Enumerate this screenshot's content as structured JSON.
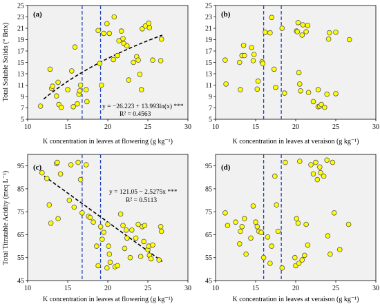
{
  "colors": {
    "panel_bg": "#f1f1f1",
    "point_fill": "#ffff00",
    "point_stroke": "#555555",
    "vline": "#1f3fbf",
    "trend": "#000000"
  },
  "axes": {
    "ylabel_top": "Total Soluble Solids (° Brix)",
    "ylabel_bottom": "Total Titratable Acidity (meq L⁻¹)",
    "xlabel_flowering": "K concentration in leaves at flowering (g kg⁻¹)",
    "xlabel_veraison": "K concentration in leaves at veraison (g kg⁻¹)"
  },
  "chart_data": [
    {
      "panel": "(a)",
      "type": "scatter",
      "xlim": [
        10,
        30
      ],
      "ylim": [
        5,
        25
      ],
      "xticks": [
        10,
        15,
        20,
        25,
        30
      ],
      "yticks": [
        5,
        7,
        9,
        11,
        13,
        15,
        17,
        19,
        21,
        23,
        25
      ],
      "vlines": [
        16.8,
        19.1
      ],
      "trend": {
        "kind": "log",
        "a": -26.223,
        "b": 13.993,
        "x_from": 12,
        "x_to": 26.8
      },
      "equation": "y = −26.223 + 13.993ln(x) ***",
      "r2": "R² = 0.4563",
      "points": [
        [
          11.6,
          7.3
        ],
        [
          12.8,
          13.8
        ],
        [
          13.0,
          10.4
        ],
        [
          13.1,
          10.8
        ],
        [
          13.6,
          9.1
        ],
        [
          13.8,
          11.5
        ],
        [
          13.9,
          7.6
        ],
        [
          14.2,
          7.1
        ],
        [
          15.0,
          10.2
        ],
        [
          15.5,
          13.5
        ],
        [
          15.7,
          7.2
        ],
        [
          15.9,
          17.7
        ],
        [
          16.2,
          7.7
        ],
        [
          16.4,
          9.4
        ],
        [
          16.5,
          10.0
        ],
        [
          16.6,
          11.0
        ],
        [
          17.3,
          10.2
        ],
        [
          17.4,
          8.1
        ],
        [
          18.8,
          20.6
        ],
        [
          19.0,
          14.8
        ],
        [
          19.2,
          11.0
        ],
        [
          19.5,
          20.1
        ],
        [
          19.9,
          21.8
        ],
        [
          20.2,
          20.1
        ],
        [
          20.7,
          15.5
        ],
        [
          20.8,
          23.0
        ],
        [
          21.2,
          16.2
        ],
        [
          21.4,
          18.8
        ],
        [
          21.7,
          20.5
        ],
        [
          21.9,
          19.2
        ],
        [
          22.0,
          18.3
        ],
        [
          22.4,
          17.9
        ],
        [
          22.6,
          11.9
        ],
        [
          23.2,
          15.0
        ],
        [
          23.6,
          16.0
        ],
        [
          23.8,
          15.4
        ],
        [
          24.0,
          12.9
        ],
        [
          24.2,
          10.2
        ],
        [
          24.3,
          20.9
        ],
        [
          24.7,
          21.4
        ],
        [
          25.1,
          21.9
        ],
        [
          25.2,
          21.1
        ],
        [
          25.6,
          15.4
        ],
        [
          26.6,
          15.3
        ],
        [
          26.7,
          19.1
        ]
      ]
    },
    {
      "panel": "(b)",
      "type": "scatter",
      "xlim": [
        10,
        30
      ],
      "ylim": [
        5,
        25
      ],
      "xticks": [
        10,
        15,
        20,
        25,
        30
      ],
      "yticks": [
        5,
        7,
        9,
        11,
        13,
        15,
        17,
        19,
        21,
        23,
        25
      ],
      "vlines": [
        16.0,
        18.2
      ],
      "points": [
        [
          11.2,
          15.4
        ],
        [
          11.3,
          11.2
        ],
        [
          13.0,
          15.0
        ],
        [
          13.1,
          10.2
        ],
        [
          13.3,
          16.2
        ],
        [
          13.5,
          18.0
        ],
        [
          13.6,
          16.2
        ],
        [
          14.5,
          17.6
        ],
        [
          14.7,
          15.3
        ],
        [
          14.8,
          16.4
        ],
        [
          15.2,
          10.3
        ],
        [
          15.3,
          11.7
        ],
        [
          15.8,
          15.1
        ],
        [
          15.9,
          14.8
        ],
        [
          16.2,
          20.3
        ],
        [
          16.8,
          20.2
        ],
        [
          17.0,
          22.9
        ],
        [
          17.3,
          13.8
        ],
        [
          17.5,
          10.6
        ],
        [
          18.3,
          21.0
        ],
        [
          18.6,
          9.6
        ],
        [
          20.1,
          20.5
        ],
        [
          20.2,
          20.4
        ],
        [
          20.3,
          22.0
        ],
        [
          20.4,
          13.2
        ],
        [
          20.5,
          11.2
        ],
        [
          20.6,
          10.0
        ],
        [
          20.8,
          19.8
        ],
        [
          20.9,
          21.6
        ],
        [
          21.3,
          20.4
        ],
        [
          21.5,
          21.5
        ],
        [
          21.6,
          9.7
        ],
        [
          22.2,
          8.1
        ],
        [
          22.8,
          10.2
        ],
        [
          22.8,
          7.2
        ],
        [
          23.0,
          7.3
        ],
        [
          23.2,
          7.6
        ],
        [
          23.6,
          7.1
        ],
        [
          23.9,
          9.4
        ],
        [
          24.1,
          19.1
        ],
        [
          24.2,
          20.2
        ],
        [
          25.0,
          20.3
        ],
        [
          25.0,
          9.5
        ],
        [
          26.7,
          19.0
        ]
      ]
    },
    {
      "panel": "(c)",
      "type": "scatter",
      "xlim": [
        10,
        30
      ],
      "ylim": [
        45,
        100
      ],
      "xticks": [
        10,
        15,
        20,
        25,
        30
      ],
      "yticks": [
        45,
        55,
        65,
        75,
        85,
        95
      ],
      "vlines": [
        16.8,
        19.1
      ],
      "trend": {
        "kind": "linear",
        "a": 121.05,
        "b": -2.5275,
        "x_from": 11.5,
        "x_to": 26.8
      },
      "equation": "y = 121.05 − 2.5275x ***",
      "r2": "R² = 0.5113",
      "points": [
        [
          11.8,
          92.0
        ],
        [
          12.4,
          89.5
        ],
        [
          12.7,
          78.0
        ],
        [
          12.9,
          70.0
        ],
        [
          13.6,
          96.0
        ],
        [
          13.7,
          96.5
        ],
        [
          13.8,
          72.0
        ],
        [
          14.1,
          91.5
        ],
        [
          15.2,
          80.0
        ],
        [
          15.4,
          95.5
        ],
        [
          15.8,
          77.0
        ],
        [
          16.3,
          96.5
        ],
        [
          16.6,
          89.0
        ],
        [
          16.8,
          74.5
        ],
        [
          17.3,
          95.5
        ],
        [
          17.6,
          73.0
        ],
        [
          17.8,
          72.5
        ],
        [
          18.2,
          70.5
        ],
        [
          18.6,
          60.0
        ],
        [
          18.8,
          51.5
        ],
        [
          19.1,
          68.5
        ],
        [
          19.3,
          63.0
        ],
        [
          19.5,
          66.0
        ],
        [
          19.9,
          50.5
        ],
        [
          20.1,
          60.0
        ],
        [
          20.2,
          56.5
        ],
        [
          20.3,
          53.0
        ],
        [
          20.9,
          51.0
        ],
        [
          21.2,
          51.5
        ],
        [
          21.6,
          74.0
        ],
        [
          21.9,
          69.0
        ],
        [
          22.1,
          59.0
        ],
        [
          22.3,
          67.0
        ],
        [
          22.4,
          63.5
        ],
        [
          22.8,
          55.0
        ],
        [
          23.0,
          67.0
        ],
        [
          23.5,
          63.5
        ],
        [
          23.8,
          69.5
        ],
        [
          24.1,
          55.5
        ],
        [
          24.3,
          68.5
        ],
        [
          24.5,
          62.0
        ],
        [
          24.6,
          69.0
        ],
        [
          25.0,
          58.5
        ],
        [
          25.1,
          60.0
        ],
        [
          25.2,
          56.0
        ],
        [
          25.4,
          54.5
        ],
        [
          25.6,
          60.5
        ],
        [
          26.4,
          54.0
        ],
        [
          26.6,
          68.5
        ],
        [
          26.7,
          66.5
        ],
        [
          20.0,
          69.5
        ]
      ]
    },
    {
      "panel": "(d)",
      "type": "scatter",
      "xlim": [
        10,
        30
      ],
      "ylim": [
        45,
        100
      ],
      "xticks": [
        10,
        15,
        20,
        25,
        30
      ],
      "yticks": [
        45,
        55,
        65,
        75,
        85,
        95
      ],
      "vlines": [
        16.0,
        18.2
      ],
      "points": [
        [
          11.2,
          74.5
        ],
        [
          11.5,
          69.0
        ],
        [
          12.5,
          70.5
        ],
        [
          13.0,
          61.0
        ],
        [
          13.1,
          66.5
        ],
        [
          13.3,
          68.5
        ],
        [
          13.6,
          72.0
        ],
        [
          13.8,
          56.5
        ],
        [
          14.4,
          63.5
        ],
        [
          14.7,
          77.5
        ],
        [
          15.0,
          70.5
        ],
        [
          15.2,
          68.5
        ],
        [
          15.4,
          66.5
        ],
        [
          15.7,
          66.0
        ],
        [
          16.0,
          55.0
        ],
        [
          16.5,
          64.0
        ],
        [
          16.8,
          52.5
        ],
        [
          17.0,
          60.0
        ],
        [
          17.4,
          90.5
        ],
        [
          17.6,
          78.0
        ],
        [
          17.8,
          66.5
        ],
        [
          18.3,
          50.5
        ],
        [
          18.7,
          96.5
        ],
        [
          19.9,
          55.0
        ],
        [
          20.0,
          51.5
        ],
        [
          20.1,
          72.0
        ],
        [
          20.3,
          70.0
        ],
        [
          20.4,
          52.5
        ],
        [
          20.5,
          97.0
        ],
        [
          20.8,
          54.0
        ],
        [
          21.1,
          56.0
        ],
        [
          21.3,
          69.5
        ],
        [
          21.5,
          60.5
        ],
        [
          21.9,
          95.5
        ],
        [
          22.2,
          91.5
        ],
        [
          22.5,
          96.5
        ],
        [
          22.7,
          89.0
        ],
        [
          23.0,
          94.5
        ],
        [
          23.1,
          92.0
        ],
        [
          23.5,
          90.5
        ],
        [
          23.9,
          97.5
        ],
        [
          24.0,
          64.5
        ],
        [
          24.3,
          56.5
        ],
        [
          24.6,
          96.5
        ],
        [
          24.8,
          74.5
        ],
        [
          25.5,
          58.5
        ],
        [
          26.6,
          69.5
        ]
      ]
    }
  ]
}
